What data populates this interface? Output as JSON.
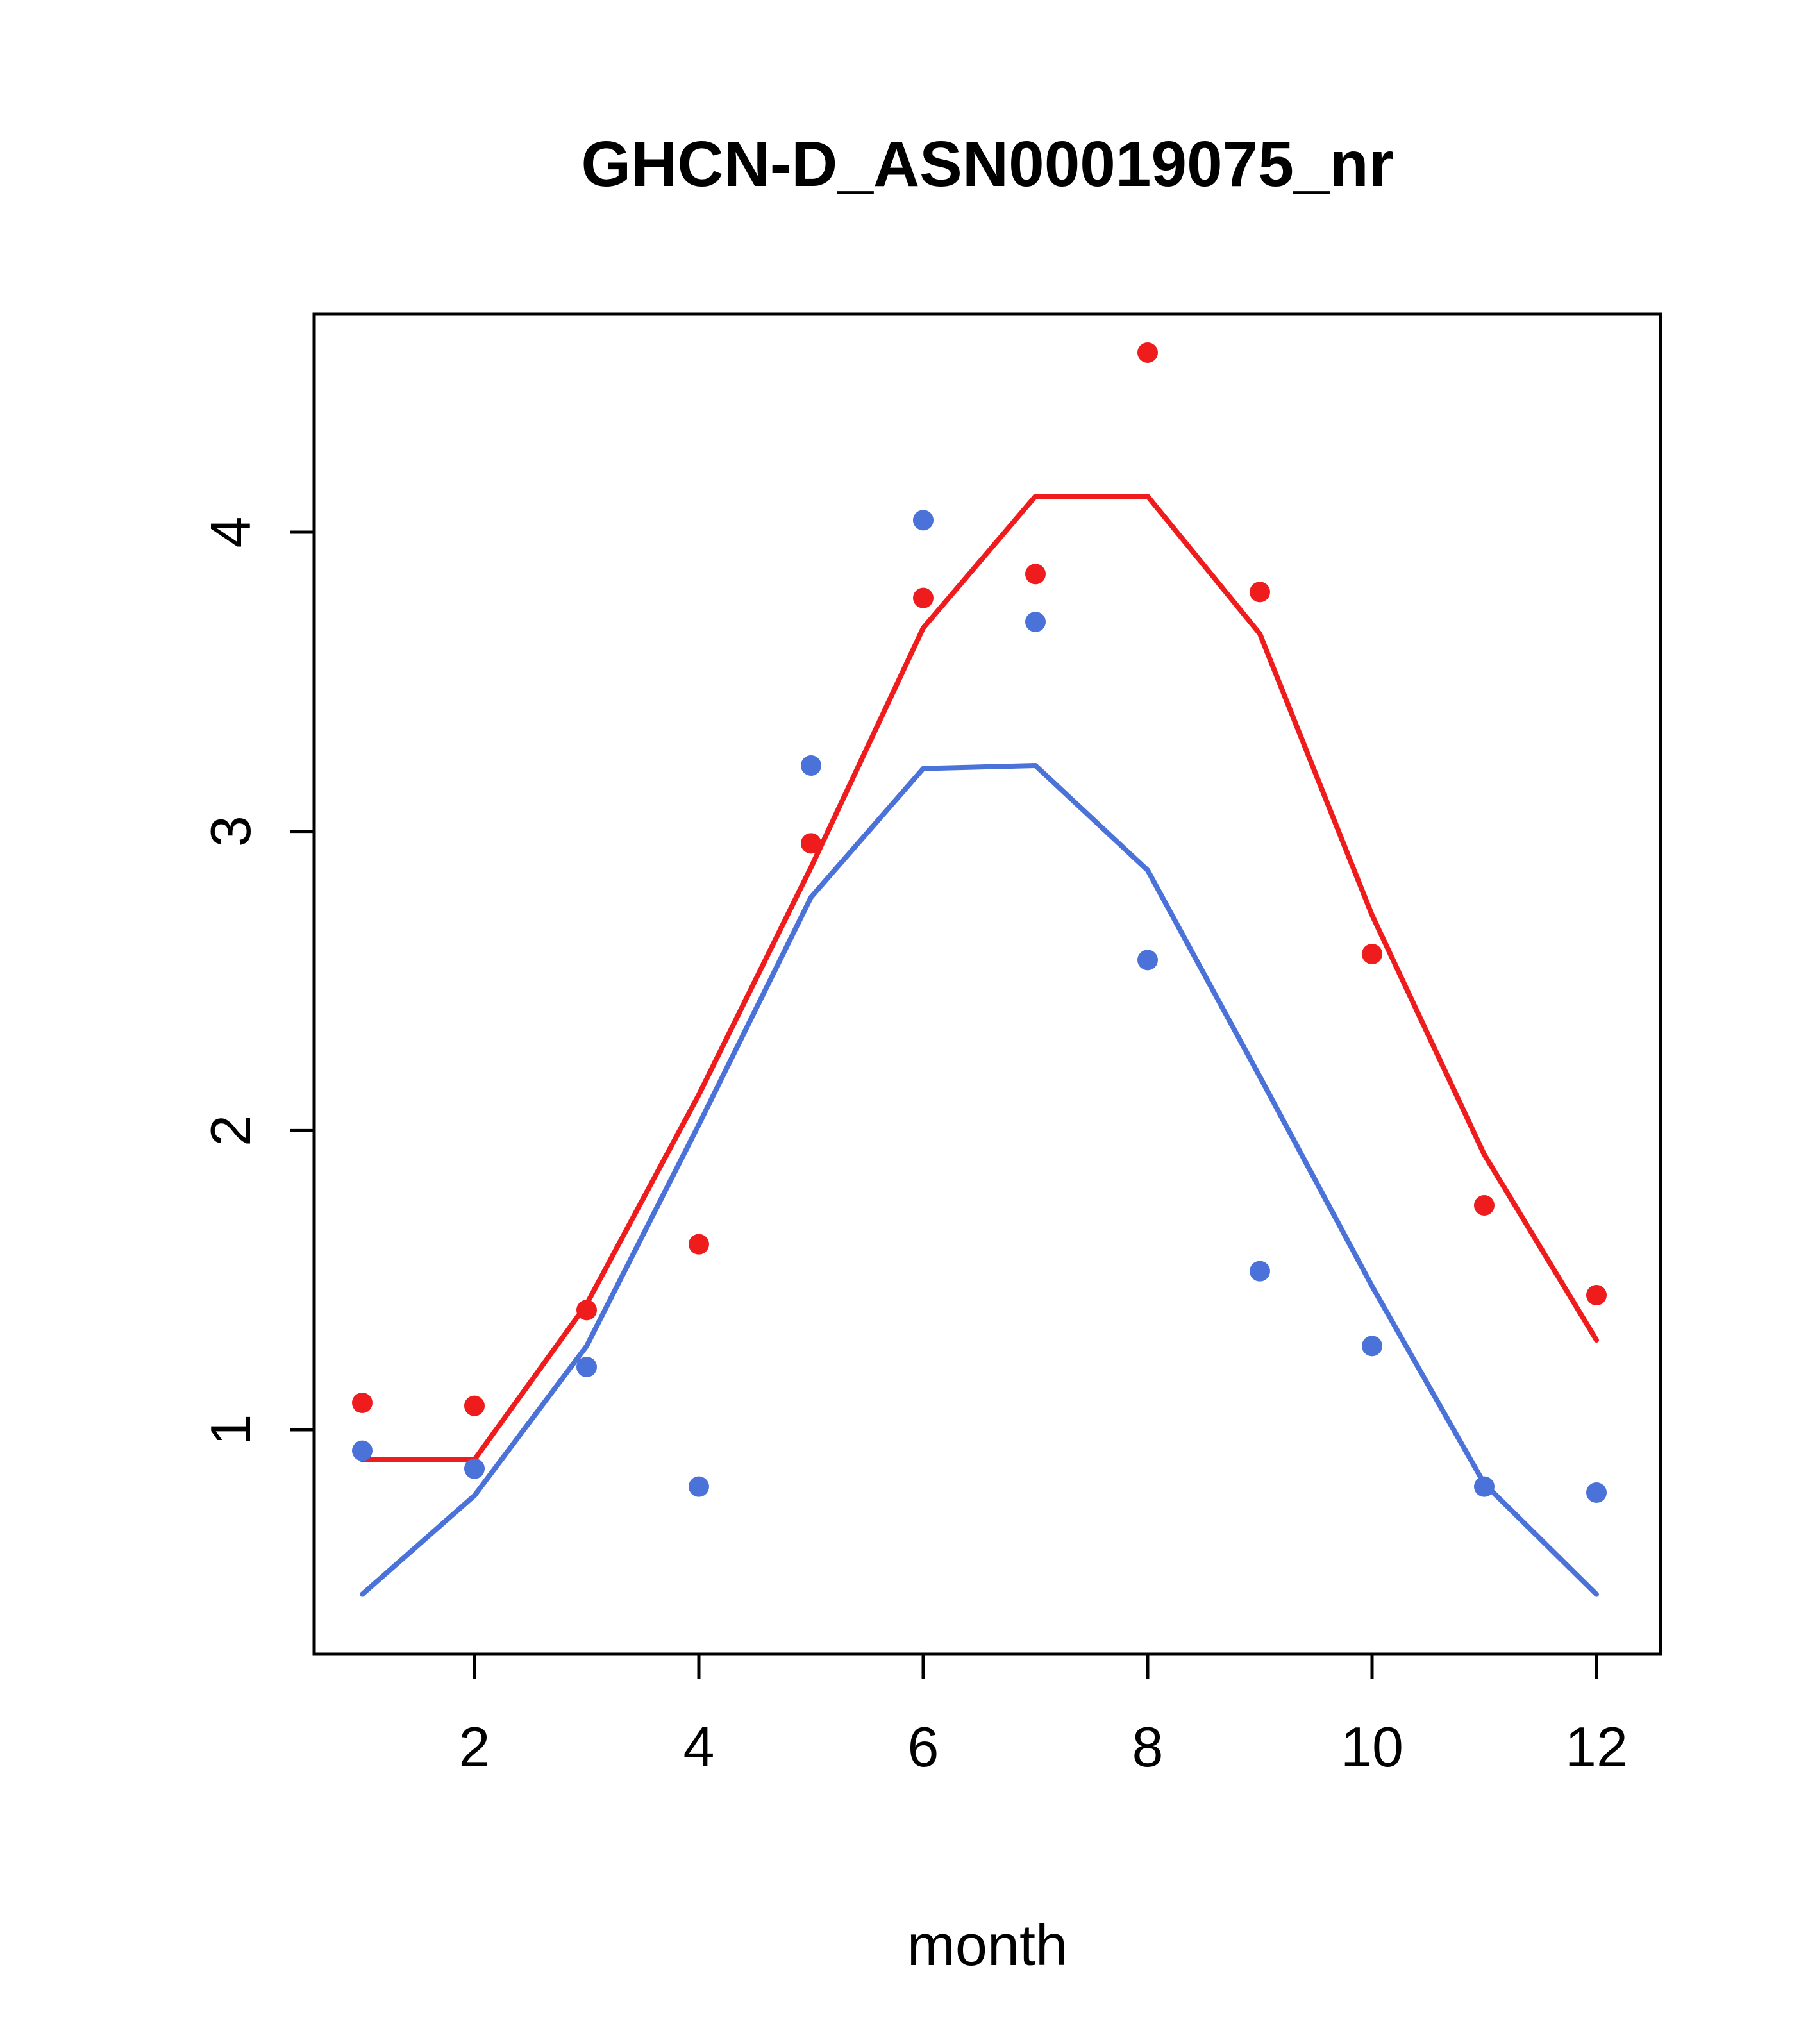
{
  "title": "GHCN-D_ASN00019075_nr",
  "chart_data": {
    "type": "scatter",
    "title": "GHCN-D_ASN00019075_nr",
    "xlabel": "month",
    "ylabel": "",
    "x": [
      1,
      2,
      3,
      4,
      5,
      6,
      7,
      8,
      9,
      10,
      11,
      12
    ],
    "xticks": [
      2,
      4,
      6,
      8,
      10,
      12
    ],
    "yticks": [
      1,
      2,
      3,
      4
    ],
    "xlim": [
      0.56,
      12.44
    ],
    "ylim": [
      0.25,
      4.73
    ],
    "grid": "off",
    "legend": "none",
    "colors": {
      "red": "#ee1c1c",
      "blue": "#4a72d8"
    },
    "series": [
      {
        "name": "red-points",
        "kind": "scatter",
        "color": "#ee1c1c",
        "values": [
          1.09,
          1.08,
          1.4,
          1.62,
          2.96,
          3.78,
          3.86,
          4.6,
          3.8,
          2.59,
          1.75,
          1.45
        ]
      },
      {
        "name": "red-line",
        "kind": "line",
        "color": "#ee1c1c",
        "values": [
          0.9,
          0.9,
          1.42,
          2.12,
          2.88,
          3.68,
          4.12,
          4.12,
          3.66,
          2.72,
          1.92,
          1.3
        ]
      },
      {
        "name": "blue-points",
        "kind": "scatter",
        "color": "#4a72d8",
        "values": [
          0.93,
          0.87,
          1.21,
          0.81,
          3.22,
          4.04,
          3.7,
          2.57,
          1.53,
          1.28,
          0.81,
          0.79
        ]
      },
      {
        "name": "blue-line",
        "kind": "line",
        "color": "#4a72d8",
        "values": [
          0.45,
          0.78,
          1.28,
          2.02,
          2.78,
          3.21,
          3.22,
          2.87,
          2.18,
          1.48,
          0.82,
          0.45
        ]
      }
    ]
  }
}
